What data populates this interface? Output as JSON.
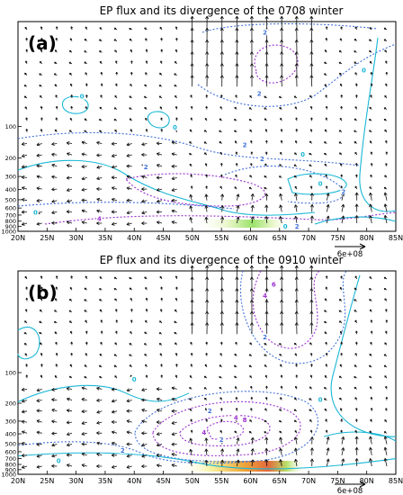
{
  "chart_data": [
    {
      "type": "vector",
      "panel_label": "(a)",
      "title": "EP flux and its divergence of the 0708 winter",
      "x_ticks": [
        "20N",
        "25N",
        "30N",
        "35N",
        "40N",
        "45N",
        "50N",
        "55N",
        "60N",
        "65N",
        "70N",
        "75N",
        "80N",
        "85N"
      ],
      "y_ticks": [
        "100",
        "200",
        "300",
        "400",
        "500",
        "600",
        "700",
        "800",
        "900",
        "1000"
      ],
      "xlim": [
        20,
        85
      ],
      "ylim": [
        1000,
        10
      ],
      "vertical_axis": "log-pressure",
      "reference_vector": "6e+08",
      "contour_labels": [
        {
          "lat": 62.5,
          "p": 13,
          "value": "2"
        },
        {
          "lat": 61.5,
          "p": 50,
          "value": "2"
        },
        {
          "lat": 79.5,
          "p": 30,
          "value": "0"
        },
        {
          "lat": 31,
          "p": 53,
          "value": "0"
        },
        {
          "lat": 47,
          "p": 105,
          "value": "0"
        },
        {
          "lat": 59,
          "p": 155,
          "value": "2"
        },
        {
          "lat": 69,
          "p": 190,
          "value": "0"
        },
        {
          "lat": 62,
          "p": 210,
          "value": "2"
        },
        {
          "lat": 42,
          "p": 250,
          "value": "2"
        },
        {
          "lat": 72,
          "p": 360,
          "value": "0"
        },
        {
          "lat": 76,
          "p": 430,
          "value": "2"
        },
        {
          "lat": 23,
          "p": 680,
          "value": "0"
        },
        {
          "lat": 34,
          "p": 780,
          "value": "4"
        },
        {
          "lat": 66,
          "p": 920,
          "value": "0"
        },
        {
          "lat": 68,
          "p": 920,
          "value": "2"
        }
      ]
    },
    {
      "type": "vector",
      "panel_label": "(b)",
      "title": "EP flux and its divergence of the 0910 winter",
      "x_ticks": [
        "20N",
        "25N",
        "30N",
        "35N",
        "40N",
        "45N",
        "50N",
        "55N",
        "60N",
        "65N",
        "70N",
        "75N",
        "80N",
        "85N"
      ],
      "y_ticks": [
        "100",
        "200",
        "300",
        "400",
        "500",
        "600",
        "700",
        "800",
        "900",
        "1000"
      ],
      "xlim": [
        20,
        85
      ],
      "ylim": [
        1000,
        10
      ],
      "vertical_axis": "log-pressure",
      "reference_vector": "6e+08",
      "contour_labels": [
        {
          "lat": 64,
          "p": 14,
          "value": "6"
        },
        {
          "lat": 62.5,
          "p": 18,
          "value": "4"
        },
        {
          "lat": 62.5,
          "p": 46,
          "value": "2"
        },
        {
          "lat": 40,
          "p": 120,
          "value": "0"
        },
        {
          "lat": 72,
          "p": 190,
          "value": "0"
        },
        {
          "lat": 53,
          "p": 245,
          "value": "2"
        },
        {
          "lat": 59,
          "p": 300,
          "value": "8"
        },
        {
          "lat": 57.5,
          "p": 285,
          "value": "4"
        },
        {
          "lat": 52,
          "p": 400,
          "value": "4"
        },
        {
          "lat": 55,
          "p": 470,
          "value": "2"
        },
        {
          "lat": 38,
          "p": 600,
          "value": "2"
        },
        {
          "lat": 27,
          "p": 760,
          "value": "0"
        }
      ]
    }
  ]
}
